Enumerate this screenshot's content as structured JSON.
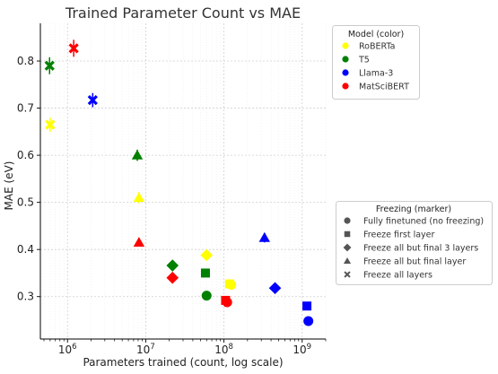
{
  "chart_data": {
    "type": "scatter",
    "title": "Trained Parameter Count vs MAE",
    "xlabel": "Parameters trained (count, log scale)",
    "ylabel": "MAE (eV)",
    "xscale": "log",
    "xlim": [
      450000,
      2000000000
    ],
    "ylim": [
      0.21,
      0.88
    ],
    "x_ticks": [
      {
        "value": 1000000,
        "base": "10",
        "exp": "6"
      },
      {
        "value": 10000000,
        "base": "10",
        "exp": "7"
      },
      {
        "value": 100000000,
        "base": "10",
        "exp": "8"
      },
      {
        "value": 1000000000,
        "base": "10",
        "exp": "9"
      }
    ],
    "y_ticks": [
      {
        "value": 0.3,
        "label": "0.3"
      },
      {
        "value": 0.4,
        "label": "0.4"
      },
      {
        "value": 0.5,
        "label": "0.5"
      },
      {
        "value": 0.6,
        "label": "0.6"
      },
      {
        "value": 0.7,
        "label": "0.7"
      },
      {
        "value": 0.8,
        "label": "0.8"
      }
    ],
    "grid": true,
    "legend_model": {
      "title": "Model (color)",
      "placement": "top-right-outside",
      "entries": [
        {
          "name": "RoBERTa",
          "color": "#ffff00"
        },
        {
          "name": "T5",
          "color": "#008000"
        },
        {
          "name": "Llama-3",
          "color": "#0000ff"
        },
        {
          "name": "MatSciBERT",
          "color": "#ff0000"
        }
      ]
    },
    "legend_marker": {
      "title": "Freezing (marker)",
      "placement": "bottom-right-outside",
      "entries": [
        {
          "name": "Fully finetuned (no freezing)",
          "marker": "circle"
        },
        {
          "name": "Freeze first layer",
          "marker": "square"
        },
        {
          "name": "Freeze all but final 3 layers",
          "marker": "diamond"
        },
        {
          "name": "Freeze all but final layer",
          "marker": "triangle"
        },
        {
          "name": "Freeze all layers",
          "marker": "x"
        }
      ]
    },
    "points": [
      {
        "model": "RoBERTa",
        "marker": "x",
        "x": 600000,
        "y": 0.665,
        "err": 0.015
      },
      {
        "model": "RoBERTa",
        "marker": "triangle",
        "x": 8200000,
        "y": 0.51,
        "err": 0.012
      },
      {
        "model": "RoBERTa",
        "marker": "diamond",
        "x": 60000000,
        "y": 0.388,
        "err": 0.0
      },
      {
        "model": "RoBERTa",
        "marker": "square",
        "x": 118000000,
        "y": 0.327,
        "err": 0.0
      },
      {
        "model": "RoBERTa",
        "marker": "circle",
        "x": 124000000,
        "y": 0.325,
        "err": 0.0
      },
      {
        "model": "T5",
        "marker": "x",
        "x": 590000,
        "y": 0.79,
        "err": 0.018
      },
      {
        "model": "T5",
        "marker": "triangle",
        "x": 7800000,
        "y": 0.6,
        "err": 0.012
      },
      {
        "model": "T5",
        "marker": "diamond",
        "x": 22000000,
        "y": 0.366,
        "err": 0.0
      },
      {
        "model": "T5",
        "marker": "square",
        "x": 58000000,
        "y": 0.35,
        "err": 0.0
      },
      {
        "model": "T5",
        "marker": "circle",
        "x": 60000000,
        "y": 0.302,
        "err": 0.0
      },
      {
        "model": "Llama-3",
        "marker": "x",
        "x": 2100000,
        "y": 0.717,
        "err": 0.015
      },
      {
        "model": "Llama-3",
        "marker": "triangle",
        "x": 330000000,
        "y": 0.425,
        "err": 0.01
      },
      {
        "model": "Llama-3",
        "marker": "diamond",
        "x": 450000000,
        "y": 0.318,
        "err": 0.0
      },
      {
        "model": "Llama-3",
        "marker": "square",
        "x": 1150000000,
        "y": 0.28,
        "err": 0.0
      },
      {
        "model": "Llama-3",
        "marker": "circle",
        "x": 1200000000,
        "y": 0.248,
        "err": 0.0
      },
      {
        "model": "MatSciBERT",
        "marker": "x",
        "x": 1200000,
        "y": 0.827,
        "err": 0.018
      },
      {
        "model": "MatSciBERT",
        "marker": "triangle",
        "x": 8200000,
        "y": 0.415,
        "err": 0.008
      },
      {
        "model": "MatSciBERT",
        "marker": "diamond",
        "x": 22000000,
        "y": 0.34,
        "err": 0.0
      },
      {
        "model": "MatSciBERT",
        "marker": "square",
        "x": 105000000,
        "y": 0.292,
        "err": 0.0
      },
      {
        "model": "MatSciBERT",
        "marker": "circle",
        "x": 110000000,
        "y": 0.288,
        "err": 0.0
      }
    ]
  }
}
